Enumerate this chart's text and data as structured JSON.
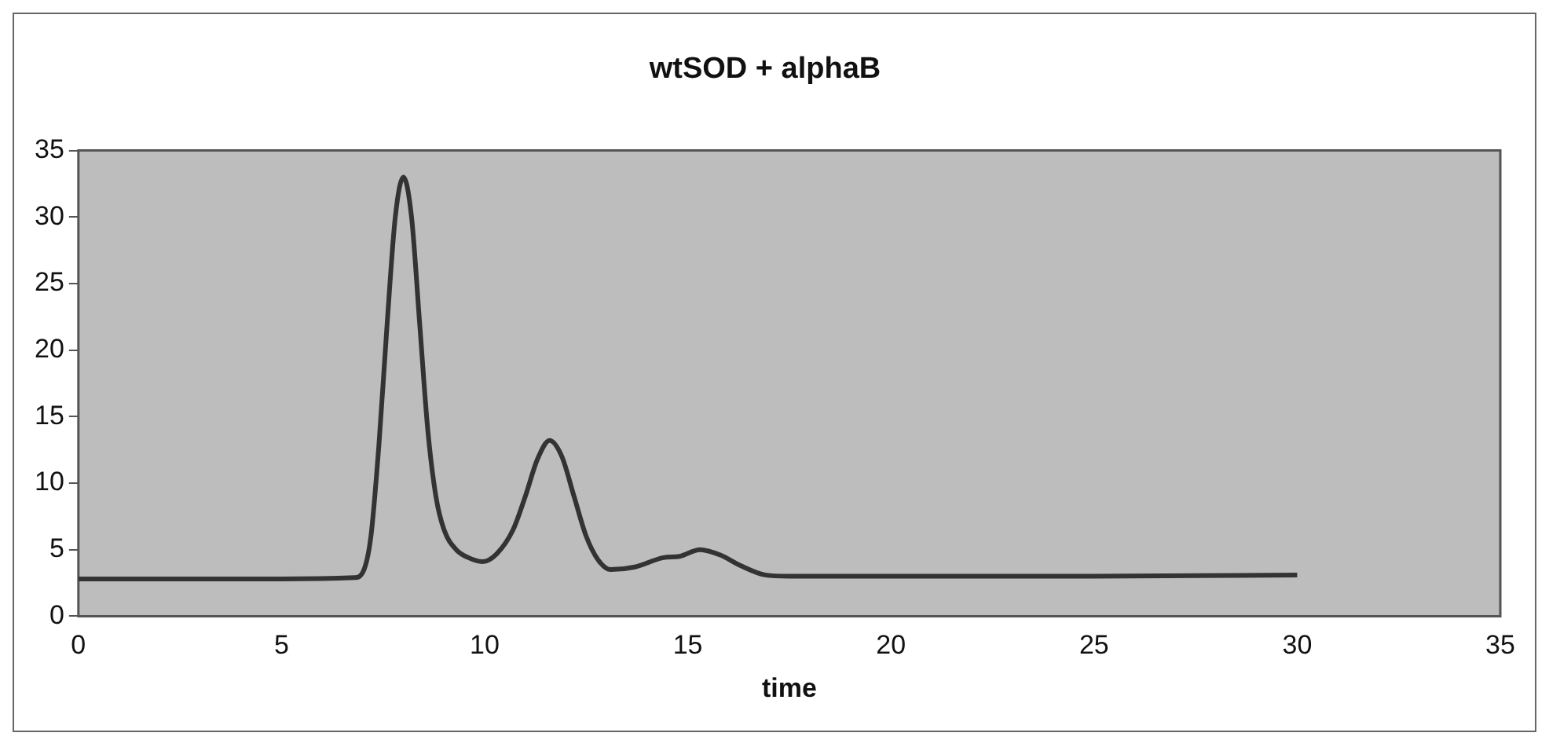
{
  "chart_data": {
    "type": "line",
    "title": "wtSOD + alphaB",
    "xlabel": "time",
    "x": [
      0,
      5,
      6.8,
      7.0,
      7.2,
      7.4,
      7.6,
      7.8,
      8.0,
      8.2,
      8.4,
      8.6,
      8.8,
      9.0,
      9.3,
      9.6,
      9.95,
      10.3,
      10.7,
      11.0,
      11.3,
      11.6,
      11.9,
      12.2,
      12.5,
      12.8,
      13.1,
      13.7,
      14.4,
      14.8,
      15.3,
      15.8,
      16.3,
      16.9,
      17.5,
      20,
      25,
      30
    ],
    "series": [
      {
        "color": "#333333",
        "values": [
          2.8,
          2.8,
          2.9,
          3.3,
          6,
          13,
          22,
          30,
          33,
          30,
          22,
          14,
          9,
          6.5,
          5,
          4.4,
          4.1,
          4.7,
          6.5,
          9,
          11.8,
          13.2,
          12,
          9,
          6,
          4.2,
          3.5,
          3.7,
          4.4,
          4.5,
          5,
          4.6,
          3.8,
          3.1,
          3,
          3,
          3,
          3.1
        ]
      }
    ],
    "xlim": [
      0,
      35
    ],
    "xticks": [
      0,
      5,
      10,
      15,
      20,
      25,
      30,
      35
    ],
    "ylim": [
      0,
      35
    ],
    "yticks": [
      0,
      5,
      10,
      15,
      20,
      25,
      30,
      35
    ],
    "grid": false,
    "legend": false,
    "marker": "none",
    "line_style": "solid"
  }
}
